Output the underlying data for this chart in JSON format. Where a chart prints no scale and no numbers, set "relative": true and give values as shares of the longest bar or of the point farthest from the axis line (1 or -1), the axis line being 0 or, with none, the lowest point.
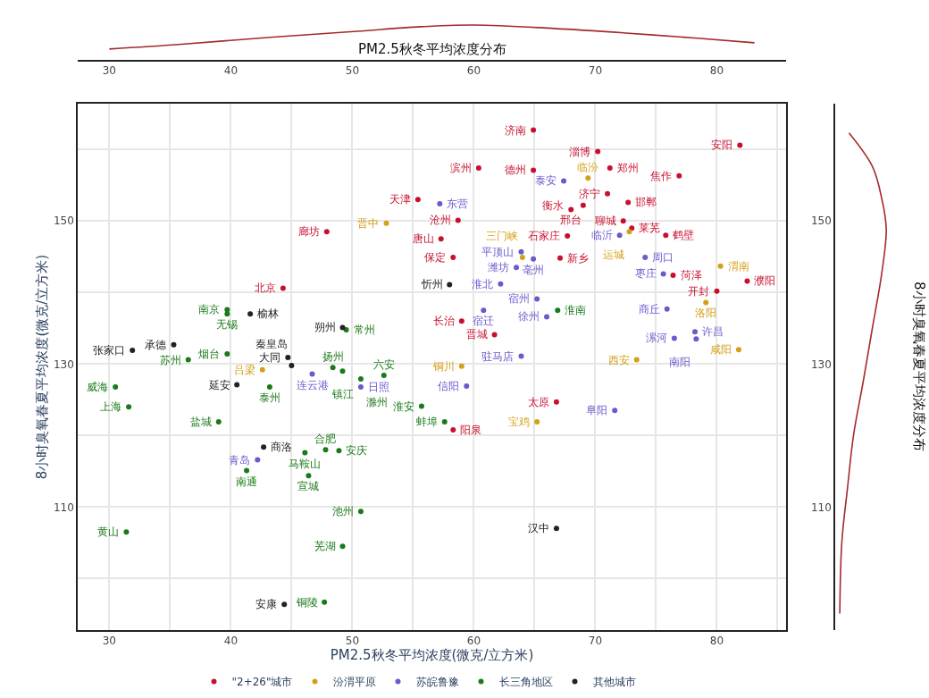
{
  "chart_data": [
    {
      "type": "scatter",
      "xlabel": "PM2.5秋冬平均浓度(微克/立方米)",
      "ylabel": "8小时臭氧春夏平均浓度(微克/立方米)",
      "xlim": [
        27.4,
        85.7
      ],
      "ylim": [
        92.8,
        166.4
      ],
      "xticks": [
        30,
        40,
        50,
        60,
        70,
        80
      ],
      "yticks": [
        110,
        130,
        150
      ],
      "grid": true,
      "legend": "bottom",
      "marker": "circle",
      "series": [
        {
          "name": "\"2+26\"城市",
          "color": "#c8102e",
          "x": [
            64.9,
            70.2,
            71.2,
            76.9,
            81.9,
            64.9,
            60.4,
            55.4,
            47.9,
            44.3,
            71.0,
            69.0,
            68.0,
            72.7,
            72.3,
            73.0,
            75.8,
            67.7,
            67.1,
            58.7,
            57.3,
            58.3,
            76.4,
            80.0,
            82.5,
            59.0,
            61.7,
            66.8,
            58.3
          ],
          "values": [
            162.7,
            159.7,
            157.4,
            156.3,
            160.6,
            157.1,
            157.4,
            153.0,
            148.5,
            140.6,
            153.8,
            152.2,
            151.6,
            152.6,
            150.0,
            149.0,
            148.0,
            147.9,
            144.8,
            150.1,
            147.5,
            144.9,
            142.4,
            140.2,
            141.6,
            136.0,
            134.1,
            124.7,
            120.8
          ],
          "value_labels": [
            "济南",
            "淄博",
            "郑州",
            "焦作",
            "安阳",
            "德州",
            "滨州",
            "天津",
            "廊坊",
            "北京",
            "济宁",
            "衡水",
            "邢台",
            "邯郸",
            "聊城",
            "莱芜",
            "鹤壁",
            "石家庄",
            "新乡",
            "沧州",
            "唐山",
            "保定",
            "菏泽",
            "开封",
            "濮阳",
            "长治",
            "晋城",
            "太原",
            "阳泉"
          ]
        },
        {
          "name": "汾渭平原",
          "color": "#d4a017",
          "x": [
            52.8,
            69.4,
            72.8,
            64.0,
            80.3,
            79.1,
            81.8,
            59.0,
            73.4,
            65.2,
            42.6
          ],
          "values": [
            149.7,
            156.0,
            148.5,
            144.9,
            143.7,
            138.6,
            132.0,
            129.7,
            130.6,
            121.9,
            129.2
          ],
          "value_labels": [
            "晋中",
            "临汾",
            "运城",
            "三门峡",
            "渭南",
            "洛阳",
            "咸阳",
            "铜川",
            "西安",
            "宝鸡",
            "吕梁"
          ]
        },
        {
          "name": "苏皖鲁豫",
          "color": "#6a5acd",
          "x": [
            67.4,
            57.2,
            63.9,
            63.5,
            64.9,
            72.0,
            75.6,
            74.1,
            75.9,
            62.2,
            65.2,
            60.8,
            66.0,
            76.5,
            78.2,
            78.3,
            63.9,
            59.4,
            71.6,
            42.2,
            46.7,
            50.7
          ],
          "values": [
            155.6,
            152.4,
            145.7,
            143.5,
            144.7,
            148.0,
            142.6,
            144.9,
            137.7,
            141.2,
            139.1,
            137.5,
            136.6,
            133.6,
            134.5,
            133.5,
            131.1,
            126.9,
            123.5,
            116.6,
            128.6,
            126.8
          ],
          "value_labels": [
            "泰安",
            "东营",
            "平顶山",
            "潍坊",
            "亳州",
            "临沂",
            "枣庄",
            "周口",
            "商丘",
            "淮北",
            "宿州",
            "宿迁",
            "徐州",
            "漯河",
            "许昌",
            "南阳",
            "驻马店",
            "信阳",
            "阜阳",
            "青岛",
            "连云港",
            "日照"
          ]
        },
        {
          "name": "长三角地区",
          "color": "#1a7a1a",
          "x": [
            66.9,
            39.7,
            39.7,
            49.5,
            39.7,
            36.5,
            48.4,
            49.2,
            52.6,
            50.7,
            43.2,
            55.7,
            57.6,
            39.0,
            31.6,
            30.5,
            47.8,
            46.1,
            48.9,
            41.3,
            46.4,
            50.7,
            31.4,
            49.2,
            47.7
          ],
          "values": [
            137.5,
            137.6,
            137.0,
            134.8,
            131.4,
            130.6,
            129.5,
            129.0,
            128.4,
            127.9,
            126.8,
            124.1,
            121.9,
            121.9,
            124.0,
            126.8,
            118.0,
            117.6,
            117.9,
            115.1,
            114.4,
            109.4,
            106.5,
            104.5,
            96.7
          ],
          "value_labels": [
            "淮南",
            "南京",
            "无锡",
            "常州",
            "烟台",
            "苏州",
            "扬州",
            "镇江",
            "六安",
            "滁州",
            "泰州",
            "淮安",
            "蚌埠",
            "盐城",
            "上海",
            "威海",
            "合肥",
            "马鞍山",
            "安庆",
            "南通",
            "宣城",
            "池州",
            "黄山",
            "芜湖",
            "铜陵"
          ]
        },
        {
          "name": "其他城市",
          "color": "#222222",
          "x": [
            58.0,
            41.6,
            49.2,
            35.3,
            31.9,
            44.7,
            45.0,
            40.5,
            42.7,
            44.4,
            66.8
          ],
          "values": [
            141.1,
            137.0,
            135.1,
            132.7,
            131.9,
            130.9,
            129.8,
            127.1,
            118.4,
            96.4,
            107.0
          ],
          "value_labels": [
            "忻州",
            "榆林",
            "朔州",
            "承德",
            "张家口",
            "大同",
            "秦皇岛",
            "延安",
            "商洛",
            "安康",
            "汉中"
          ]
        }
      ]
    },
    {
      "type": "line",
      "relative": true,
      "xlabel": "PM2.5秋冬平均浓度分布",
      "xlim": [
        27.4,
        85.7
      ],
      "xticks": [
        30,
        40,
        50,
        60,
        70,
        80
      ],
      "x": [
        30,
        35.7,
        43,
        50.4,
        55.6,
        60,
        66.6,
        72.5,
        78.4,
        83.1
      ],
      "series": [
        {
          "color": "#a52a2a",
          "values": [
            0.31,
            0.44,
            0.64,
            0.82,
            0.95,
            1,
            0.9,
            0.77,
            0.62,
            0.49
          ]
        }
      ]
    },
    {
      "type": "line",
      "relative": true,
      "orientation": "horizontal",
      "ylabel": "8小时臭氧春夏平均浓度分布",
      "ylim": [
        92.8,
        166.4
      ],
      "yticks": [
        110,
        130,
        150
      ],
      "x": [
        162.3,
        157.6,
        153.2,
        148.9,
        142.6,
        135.1,
        127.6,
        120.1,
        112.6,
        105.1,
        95.1
      ],
      "series": [
        {
          "color": "#a52a2a",
          "values": [
            0.27,
            0.73,
            0.91,
            1,
            0.91,
            0.73,
            0.55,
            0.36,
            0.24,
            0.13,
            0.09
          ]
        }
      ]
    }
  ]
}
